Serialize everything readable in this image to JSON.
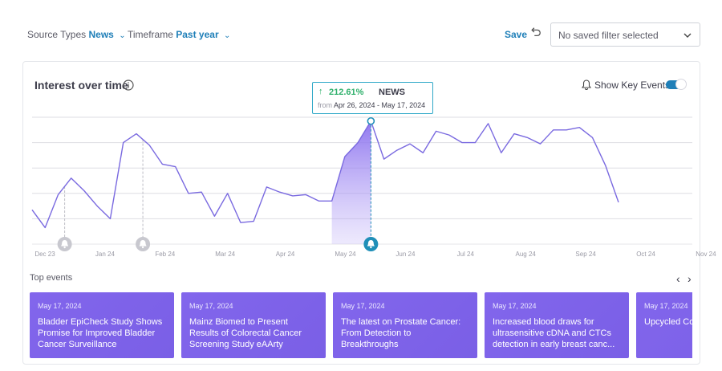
{
  "filters": {
    "source_label": "Source Types",
    "source_value": "News",
    "timeframe_label": "Timeframe",
    "timeframe_value": "Past year"
  },
  "toolbar": {
    "save_label": "Save",
    "saved_filter_value": "No saved filter selected"
  },
  "card": {
    "title": "Interest over time",
    "key_events_label": "Show Key Events",
    "key_events_on": true
  },
  "tooltip": {
    "change": "212.61%",
    "source": "NEWS",
    "from_label": "from",
    "range": "Apr 26, 2024 - May 17, 2024"
  },
  "chart_data": {
    "type": "line",
    "x_ticks": [
      "Dec 23",
      "Jan 24",
      "Feb 24",
      "Mar 24",
      "Apr 24",
      "May 24",
      "Jun 24",
      "Jul 24",
      "Aug 24",
      "Sep 24",
      "Oct 24",
      "Nov 24"
    ],
    "ylim": [
      0,
      100
    ],
    "grid": true,
    "line_color": "#7a6ae0",
    "series": [
      {
        "values": [
          27,
          13,
          39,
          52,
          42,
          30,
          20,
          80,
          87,
          78,
          63,
          61,
          40,
          41,
          22,
          40,
          17,
          18,
          45,
          41,
          38,
          39,
          34,
          34,
          69,
          80,
          97,
          67,
          74,
          79,
          72,
          89,
          86,
          80,
          80,
          95,
          72,
          87,
          84,
          79,
          90,
          90,
          92,
          84,
          62,
          33
        ]
      }
    ],
    "highlight": {
      "start_index": 23,
      "end_index": 26
    },
    "key_events_x": [
      "Dec 23",
      "Jan 24",
      "May 24"
    ]
  },
  "top_events": {
    "label": "Top events",
    "items": [
      {
        "date": "May 17, 2024",
        "title": "Bladder EpiCheck Study Shows Promise for Improved Bladder Cancer Surveillance"
      },
      {
        "date": "May 17, 2024",
        "title": "Mainz Biomed to Present Results of Colorectal Cancer Screening Study eAArty DETEC..."
      },
      {
        "date": "May 17, 2024",
        "title": "The latest on Prostate Cancer: From Detection to Breakthroughs"
      },
      {
        "date": "May 17, 2024",
        "title": "Increased blood draws for ultrasensitive cDNA and CTCs detection in early breast canc..."
      },
      {
        "date": "May 17, 2024",
        "title": "Upcycled Co... Market Incre..."
      }
    ]
  },
  "icons": {
    "chevron": "chevron-down-icon",
    "undo": "undo-icon",
    "info": "info-icon",
    "bell": "bell-icon"
  }
}
